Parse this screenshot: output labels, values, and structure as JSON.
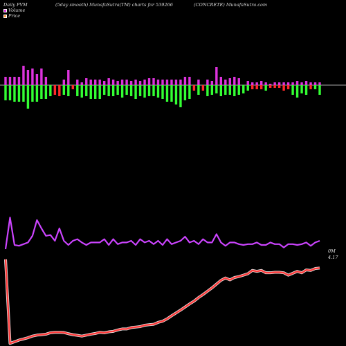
{
  "header": {
    "left": "Daily PVM",
    "mid": "(5day smooth) MunafaSutra(TM) charts for 539266",
    "right": "(CONCRETE) MunafaSutra.com"
  },
  "legend": {
    "volume_label": "Volume",
    "price_label": "Price",
    "volume_color": "#dd33dd",
    "price_color": "#ff4d4d"
  },
  "end_labels": {
    "volume": "0M",
    "price": "4.17"
  },
  "chart_data": {
    "type": "line",
    "colors": {
      "volume_up": "#dd33dd",
      "volume_down": "#ff2a2a",
      "volume_neutral": "#33ff33",
      "volume_line": "#cc44ff",
      "price_line": "#ff3b3b",
      "baseline": "#aaaaaa"
    },
    "volume_bars": {
      "up": [
        6,
        6,
        6,
        6,
        14,
        11,
        12,
        8,
        12,
        6,
        0,
        0,
        0,
        4,
        11,
        0,
        4,
        2,
        5,
        4,
        4,
        4,
        3,
        5,
        4,
        3,
        4,
        4,
        3,
        4,
        3,
        4,
        5,
        5,
        4,
        4,
        4,
        4,
        4,
        4,
        6,
        6,
        0,
        4,
        0,
        4,
        3,
        13,
        6,
        4,
        5,
        6,
        5,
        0,
        3,
        2,
        2,
        3,
        2,
        1,
        2,
        2,
        2,
        2,
        2,
        3,
        2,
        3,
        2,
        2,
        2
      ],
      "down": [
        0,
        0,
        0,
        0,
        0,
        0,
        0,
        0,
        0,
        0,
        0,
        7,
        8,
        0,
        0,
        3,
        0,
        0,
        0,
        0,
        0,
        0,
        0,
        0,
        0,
        0,
        0,
        0,
        0,
        0,
        0,
        0,
        0,
        0,
        0,
        0,
        0,
        0,
        0,
        0,
        0,
        0,
        4,
        0,
        4,
        0,
        0,
        0,
        0,
        0,
        0,
        0,
        0,
        0,
        0,
        3,
        3,
        3,
        0,
        2,
        2,
        2,
        4,
        3,
        0,
        0,
        0,
        0,
        3,
        0,
        0
      ],
      "neutral": [
        11,
        11,
        12,
        12,
        12,
        17,
        12,
        12,
        10,
        10,
        8,
        0,
        0,
        7,
        8,
        0,
        8,
        9,
        8,
        10,
        10,
        10,
        7,
        8,
        8,
        7,
        9,
        7,
        8,
        10,
        8,
        9,
        8,
        8,
        9,
        10,
        12,
        12,
        14,
        16,
        11,
        10,
        0,
        7,
        0,
        8,
        7,
        6,
        8,
        7,
        7,
        8,
        7,
        6,
        4,
        0,
        0,
        0,
        4,
        0,
        0,
        0,
        0,
        0,
        7,
        9,
        6,
        7,
        0,
        3,
        7
      ]
    },
    "volume_series": [
      0.5,
      0.88,
      0.55,
      0.54,
      0.56,
      0.58,
      0.66,
      0.85,
      0.75,
      0.66,
      0.67,
      0.6,
      0.75,
      0.6,
      0.55,
      0.6,
      0.62,
      0.58,
      0.55,
      0.58,
      0.58,
      0.58,
      0.62,
      0.55,
      0.62,
      0.56,
      0.58,
      0.58,
      0.6,
      0.55,
      0.62,
      0.58,
      0.6,
      0.56,
      0.6,
      0.55,
      0.62,
      0.56,
      0.58,
      0.6,
      0.65,
      0.58,
      0.6,
      0.56,
      0.62,
      0.58,
      0.58,
      0.68,
      0.58,
      0.54,
      0.58,
      0.58,
      0.56,
      0.55,
      0.56,
      0.56,
      0.58,
      0.55,
      0.55,
      0.58,
      0.56,
      0.56,
      0.52,
      0.56,
      0.56,
      0.55,
      0.56,
      0.58,
      0.54,
      0.58,
      0.6
    ],
    "price_series": [
      4.17,
      0.61,
      0.68,
      0.75,
      0.8,
      0.85,
      0.92,
      0.96,
      0.98,
      1.0,
      1.06,
      1.08,
      1.08,
      1.07,
      1.02,
      0.98,
      0.95,
      0.92,
      0.96,
      1.0,
      1.03,
      1.08,
      1.06,
      1.1,
      1.12,
      1.18,
      1.22,
      1.22,
      1.28,
      1.3,
      1.32,
      1.38,
      1.4,
      1.42,
      1.5,
      1.55,
      1.65,
      1.78,
      1.9,
      2.02,
      2.15,
      2.28,
      2.4,
      2.55,
      2.68,
      2.82,
      2.96,
      3.12,
      3.28,
      3.38,
      3.3,
      3.4,
      3.44,
      3.5,
      3.56,
      3.7,
      3.66,
      3.7,
      3.6,
      3.6,
      3.62,
      3.62,
      3.6,
      3.5,
      3.58,
      3.66,
      3.6,
      3.72,
      3.7,
      3.78,
      3.8
    ]
  }
}
